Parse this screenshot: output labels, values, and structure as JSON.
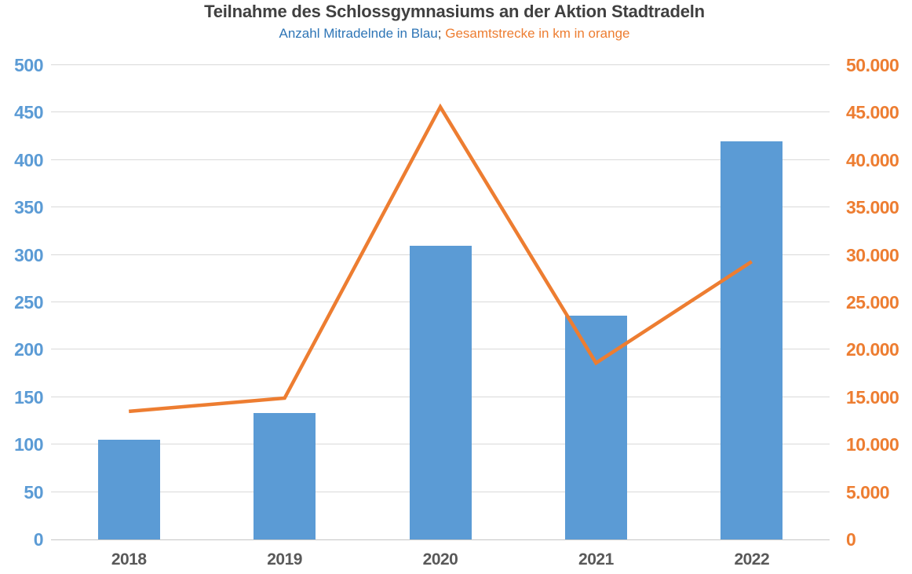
{
  "title": "Teilnahme des Schlossgymnasiums an der Aktion Stadtradeln",
  "subtitle": {
    "part_blue": "Anzahl Mitradelnde in Blau",
    "separator": ";",
    "part_orange": "Gesamtstrecke in km in orange"
  },
  "colors": {
    "bar_blue": "#5B9BD5",
    "line_orange": "#ED7D31",
    "left_axis_text": "#5B9BD5",
    "right_axis_text": "#ED7D31",
    "title_text": "#404040",
    "x_axis_text": "#595959",
    "gridline": "#D9D9D9"
  },
  "chart_data": {
    "type": "bar",
    "subtype": "combo-bar-line-dual-axis",
    "categories": [
      "2018",
      "2019",
      "2020",
      "2021",
      "2022"
    ],
    "series": [
      {
        "name": "Anzahl Mitradelnde",
        "type": "bar",
        "axis": "left",
        "color": "#5B9BD5",
        "values": [
          105,
          133,
          310,
          236,
          420
        ]
      },
      {
        "name": "Gesamtstrecke in km",
        "type": "line",
        "axis": "right",
        "color": "#ED7D31",
        "values": [
          13500,
          14900,
          45600,
          18600,
          29300
        ]
      }
    ],
    "title": "Teilnahme des Schlossgymnasiums an der Aktion Stadtradeln",
    "xlabel": "",
    "ylabel_left": "Anzahl Mitradelnde",
    "ylabel_right": "Gesamtstrecke in km",
    "left_axis": {
      "min": 0,
      "max": 500,
      "step": 50,
      "tick_labels": [
        "0",
        "50",
        "100",
        "150",
        "200",
        "250",
        "300",
        "350",
        "400",
        "450",
        "500"
      ]
    },
    "right_axis": {
      "min": 0,
      "max": 50000,
      "step": 5000,
      "tick_labels": [
        "0",
        "5.000",
        "10.000",
        "15.000",
        "20.000",
        "25.000",
        "30.000",
        "35.000",
        "40.000",
        "45.000",
        "50.000"
      ]
    },
    "grid": true,
    "legend_position": "subtitle-inline"
  }
}
